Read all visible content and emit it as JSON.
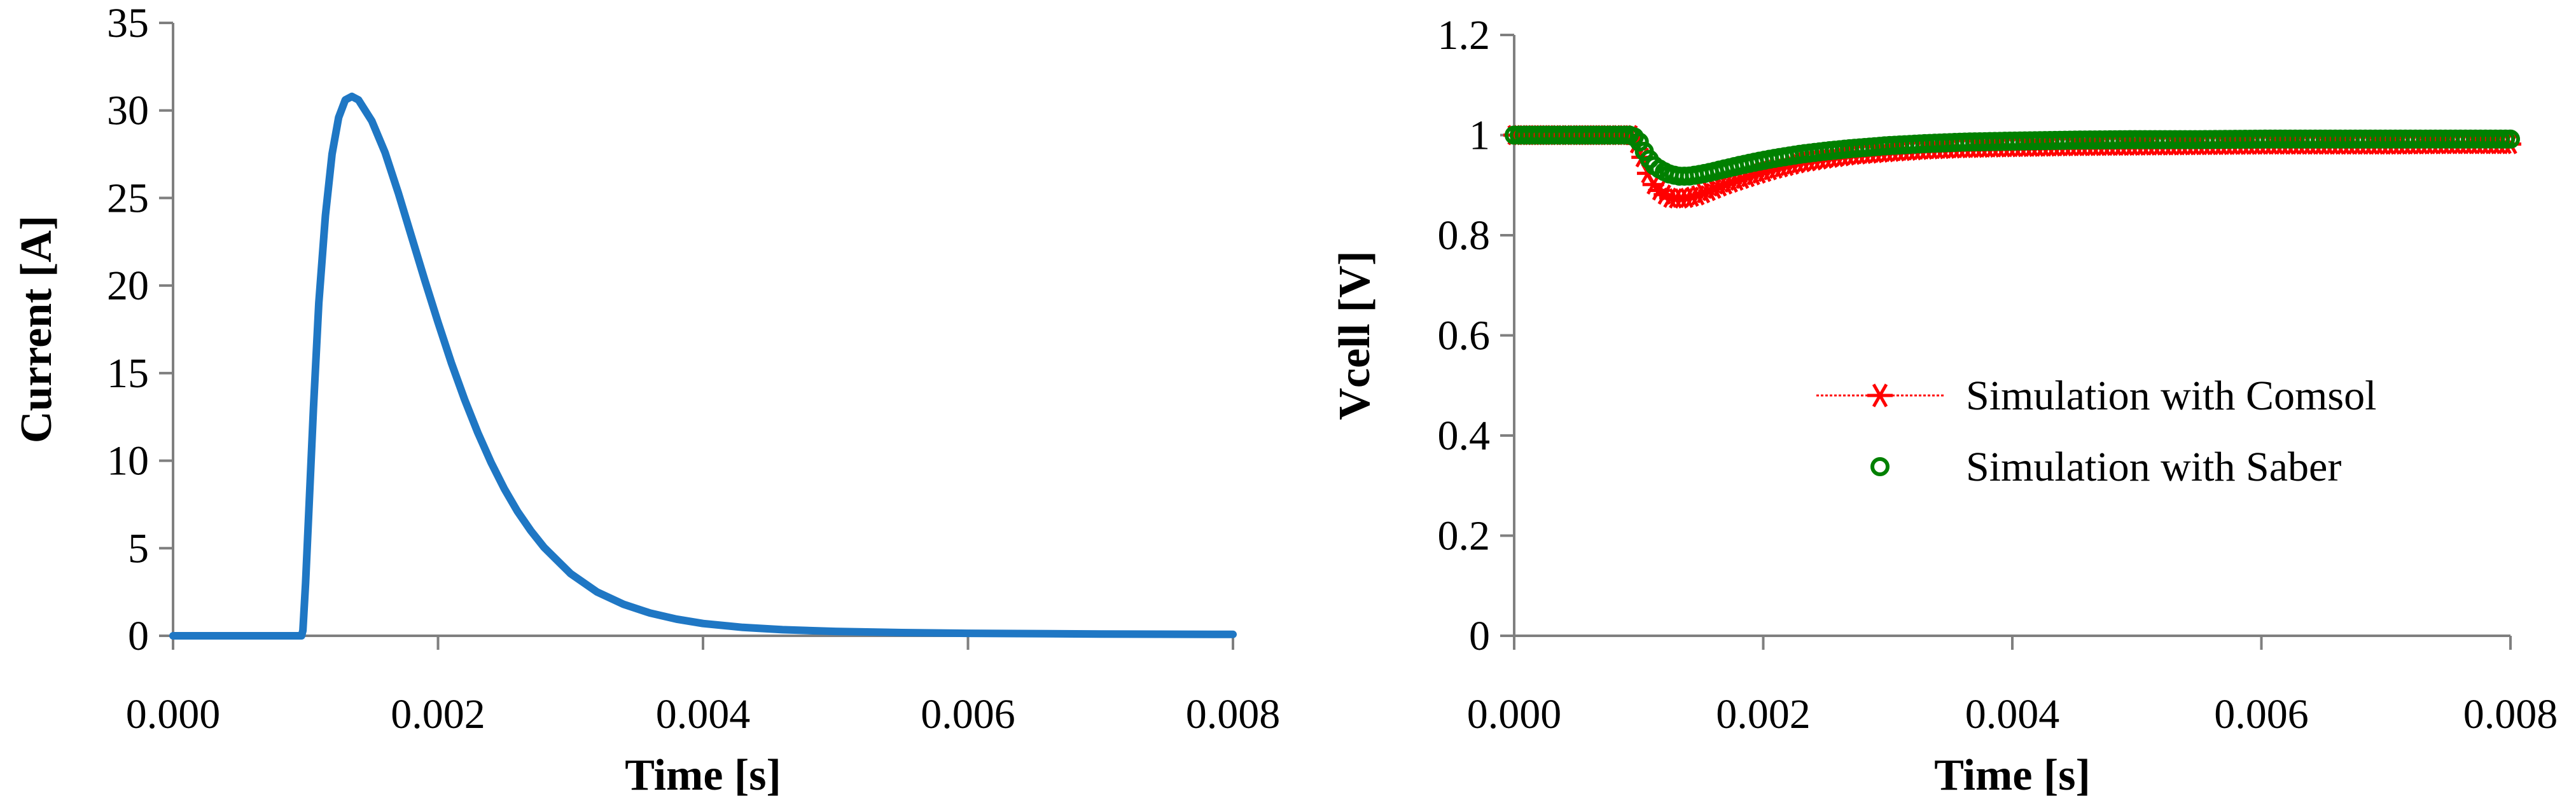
{
  "chart_data": [
    {
      "type": "line",
      "xlabel": "Time [s]",
      "ylabel": "Current [A]",
      "xlim": [
        0,
        0.008
      ],
      "ylim": [
        0,
        35
      ],
      "xticks": [
        0,
        0.002,
        0.004,
        0.006,
        0.008
      ],
      "xtick_labels": [
        "0.000",
        "0.002",
        "0.004",
        "0.006",
        "0.008"
      ],
      "yticks": [
        0,
        5,
        10,
        15,
        20,
        25,
        30,
        35
      ],
      "ytick_labels": [
        "0",
        "5",
        "10",
        "15",
        "20",
        "25",
        "30",
        "35"
      ],
      "grid": false,
      "series": [
        {
          "color": "#1f77c4",
          "x": [
            0,
            0.00095,
            0.00097,
            0.00098,
            0.001,
            0.00103,
            0.00106,
            0.0011,
            0.00115,
            0.0012,
            0.00125,
            0.0013,
            0.00135,
            0.0014,
            0.0015,
            0.0016,
            0.0017,
            0.0018,
            0.0019,
            0.002,
            0.0021,
            0.0022,
            0.0023,
            0.0024,
            0.0025,
            0.0026,
            0.0027,
            0.0028,
            0.003,
            0.0032,
            0.0034,
            0.0036,
            0.0038,
            0.004,
            0.0043,
            0.0046,
            0.005,
            0.0055,
            0.006,
            0.007,
            0.008
          ],
          "y": [
            0,
            0,
            0,
            0.3,
            3,
            8,
            13,
            19,
            24,
            27.5,
            29.6,
            30.6,
            30.8,
            30.6,
            29.4,
            27.6,
            25.3,
            22.8,
            20.3,
            17.9,
            15.6,
            13.5,
            11.6,
            9.9,
            8.4,
            7.1,
            6,
            5.05,
            3.55,
            2.5,
            1.8,
            1.3,
            0.95,
            0.7,
            0.48,
            0.35,
            0.25,
            0.18,
            0.14,
            0.1,
            0.08
          ]
        }
      ]
    },
    {
      "type": "scatter",
      "xlabel": "Time [s]",
      "ylabel": "Vcell [V]",
      "xlim": [
        0,
        0.008
      ],
      "ylim": [
        0,
        1.2
      ],
      "xticks": [
        0,
        0.002,
        0.004,
        0.006,
        0.008
      ],
      "xtick_labels": [
        "0.000",
        "0.002",
        "0.004",
        "0.006",
        "0.008"
      ],
      "yticks": [
        0,
        0.2,
        0.4,
        0.6,
        0.8,
        1,
        1.2
      ],
      "ytick_labels": [
        "0",
        "0.2",
        "0.4",
        "0.6",
        "0.8",
        "1",
        "1.2"
      ],
      "grid": false,
      "legend_position": "center-right",
      "series": [
        {
          "name": "Simulation with Comsol",
          "color": "#ff0000",
          "marker": "asterisk",
          "x": [
            0,
            0.00025,
            0.0005,
            0.00075,
            0.00095,
            0.00101,
            0.00106,
            0.00112,
            0.00118,
            0.00125,
            0.00132,
            0.0014,
            0.00148,
            0.00158,
            0.00168,
            0.0018,
            0.00195,
            0.0021,
            0.0023,
            0.0025,
            0.0027,
            0.003,
            0.0033,
            0.0036,
            0.004,
            0.0045,
            0.005,
            0.0055,
            0.006,
            0.0065,
            0.007,
            0.0075,
            0.008
          ],
          "y": [
            1,
            1,
            1,
            1,
            1,
            0.97,
            0.93,
            0.9,
            0.885,
            0.875,
            0.873,
            0.875,
            0.88,
            0.89,
            0.9,
            0.91,
            0.922,
            0.933,
            0.945,
            0.953,
            0.96,
            0.966,
            0.971,
            0.974,
            0.976,
            0.978,
            0.979,
            0.98,
            0.981,
            0.981,
            0.981,
            0.982,
            0.982
          ]
        },
        {
          "name": "Simulation with Saber",
          "color": "#008000",
          "marker": "circle",
          "x": [
            0,
            0.00025,
            0.0005,
            0.00075,
            0.00095,
            0.00101,
            0.00106,
            0.00112,
            0.00118,
            0.00125,
            0.00132,
            0.0014,
            0.00148,
            0.00158,
            0.00168,
            0.0018,
            0.00195,
            0.0021,
            0.0023,
            0.0025,
            0.0027,
            0.003,
            0.0033,
            0.0036,
            0.004,
            0.0045,
            0.005,
            0.0055,
            0.006,
            0.0065,
            0.007,
            0.0075,
            0.008
          ],
          "y": [
            1,
            1,
            1,
            1,
            1,
            0.985,
            0.96,
            0.94,
            0.93,
            0.922,
            0.918,
            0.918,
            0.921,
            0.926,
            0.932,
            0.939,
            0.947,
            0.954,
            0.962,
            0.968,
            0.973,
            0.979,
            0.983,
            0.986,
            0.988,
            0.99,
            0.991,
            0.991,
            0.992,
            0.992,
            0.992,
            0.992,
            0.992
          ]
        }
      ]
    }
  ]
}
